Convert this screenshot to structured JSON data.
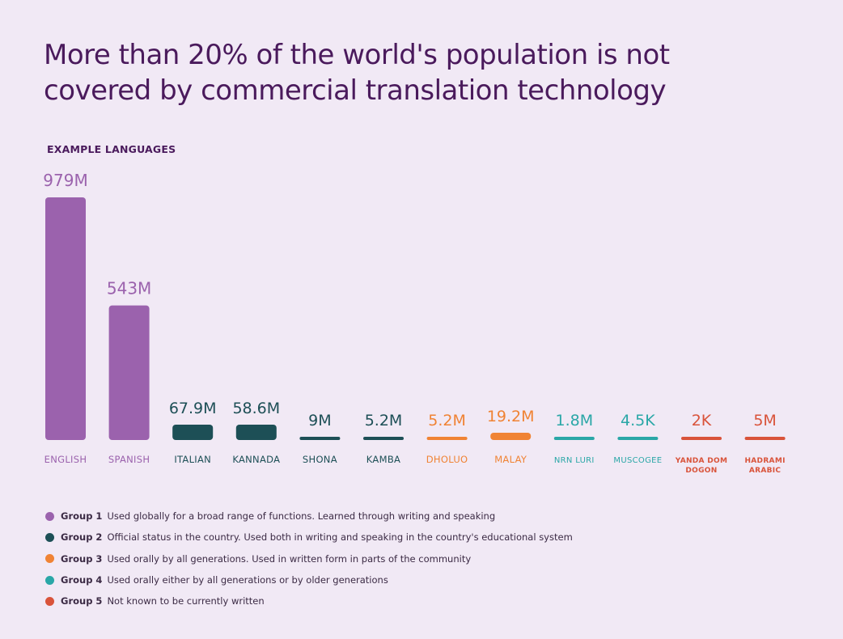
{
  "title": "More than 20% of the world's population is not covered by commercial translation technology",
  "subtitle": "EXAMPLE LANGUAGES",
  "colors": {
    "group1": "#9b62ad",
    "group2": "#1d4f56",
    "group3": "#f08334",
    "group4": "#2aa7a7",
    "group5": "#d9533a",
    "title": "#4a1a5c",
    "background": "#f1e9f5"
  },
  "chart_data": {
    "type": "bar",
    "title": "More than 20% of the world's population is not covered by commercial translation technology",
    "xlabel": "",
    "ylabel": "",
    "categories": [
      {
        "label": [
          "ENGLISH"
        ],
        "value_label": "979M",
        "value": 979000000,
        "group": 1
      },
      {
        "label": [
          "SPANISH"
        ],
        "value_label": "543M",
        "value": 543000000,
        "group": 1
      },
      {
        "label": [
          "ITALIAN"
        ],
        "value_label": "67.9M",
        "value": 67900000,
        "group": 2
      },
      {
        "label": [
          "KANNADA"
        ],
        "value_label": "58.6M",
        "value": 58600000,
        "group": 2
      },
      {
        "label": [
          "SHONA"
        ],
        "value_label": "9M",
        "value": 9000000,
        "group": 2
      },
      {
        "label": [
          "KAMBA"
        ],
        "value_label": "5.2M",
        "value": 5200000,
        "group": 2
      },
      {
        "label": [
          "DHOLUO"
        ],
        "value_label": "5.2M",
        "value": 5200000,
        "group": 3
      },
      {
        "label": [
          "MALAY"
        ],
        "value_label": "19.2M",
        "value": 19200000,
        "group": 3
      },
      {
        "label": [
          "NRN LURI"
        ],
        "value_label": "1.8M",
        "value": 1800000,
        "group": 4
      },
      {
        "label": [
          "MUSCOGEE"
        ],
        "value_label": "4.5K",
        "value": 4500,
        "group": 4
      },
      {
        "label": [
          "YANDA DOM",
          "DOGON"
        ],
        "value_label": "2K",
        "value": 2000,
        "group": 5
      },
      {
        "label": [
          "HADRAMI",
          "ARABIC"
        ],
        "value_label": "5M",
        "value": 5000000,
        "group": 5
      }
    ],
    "ylim": [
      0,
      979000000
    ],
    "grid": false,
    "legend_position": "bottom-left"
  },
  "legend": [
    {
      "group": 1,
      "name": "Group 1",
      "description": "Used globally for a broad range of functions. Learned through writing and speaking"
    },
    {
      "group": 2,
      "name": "Group 2",
      "description": "Official status in the country. Used both in writing and speaking in the  country's educational system"
    },
    {
      "group": 3,
      "name": "Group 3",
      "description": "Used orally by all generations. Used in written form in parts of the community"
    },
    {
      "group": 4,
      "name": "Group 4",
      "description": "Used orally either by all generations or by older generations"
    },
    {
      "group": 5,
      "name": "Group 5",
      "description": "Not known to be currently written"
    }
  ]
}
